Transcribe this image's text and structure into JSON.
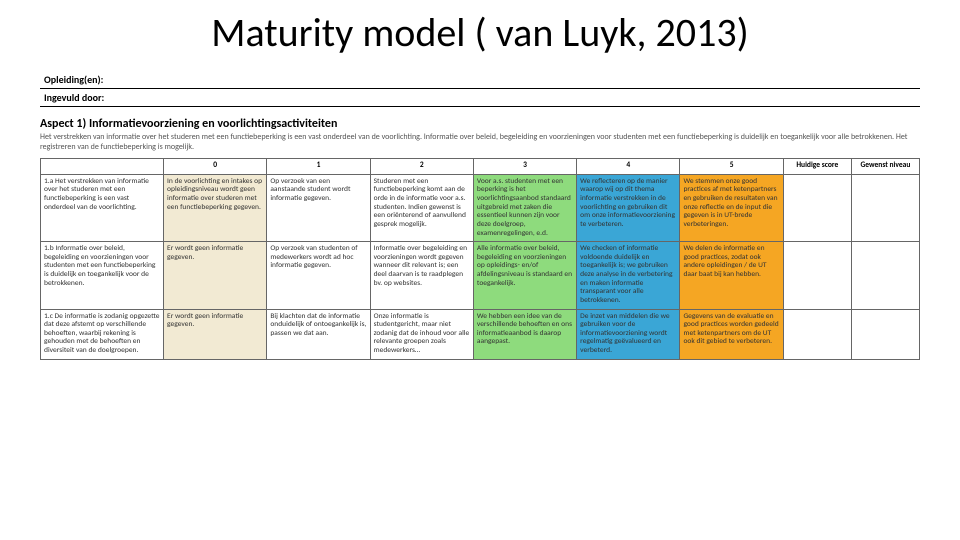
{
  "title": "Maturity model ( van Luyk, 2013)",
  "form": {
    "opleiding": "Opleiding(en):",
    "ingevuld": "Ingevuld door:"
  },
  "aspect": {
    "heading": "Aspect 1) Informatievoorziening en voorlichtingsactiviteiten",
    "description": "Het verstrekken van informatie over het studeren met een functiebeperking is een vast onderdeel van de voorlichting. Informatie over beleid, begeleiding en voorzieningen voor studenten met een functiebeperking is duidelijk en toegankelijk voor alle betrokkenen. Het registreren van de functiebeperking is mogelijk."
  },
  "columns": {
    "0": "0",
    "1": "1",
    "2": "2",
    "3": "3",
    "4": "4",
    "5": "5",
    "huidige": "Huidige score",
    "gewenst": "Gewenst niveau"
  },
  "colors": {
    "beige": "#f2ead3",
    "green": "#8edb7d",
    "blue": "#3aa6d6",
    "orange": "#f5a623",
    "border": "#666666",
    "text": "#333333"
  },
  "rows": [
    {
      "label": "1.a Het verstrekken van informatie over het studeren met een functiebeperking is een vast onderdeel van de voorlichting.",
      "cells": [
        {
          "text": "In de voorlichting en intakes op opleidingsniveau wordt geen informatie over studeren met een functiebeperking gegeven.",
          "cls": "c-beige"
        },
        {
          "text": "Op verzoek van een aanstaande student wordt informatie gegeven.",
          "cls": ""
        },
        {
          "text": "Studeren met een functiebeperking komt aan de orde in de informatie voor a.s. studenten. Indien gewenst is een oriënterend of aanvullend gesprek mogelijk.",
          "cls": ""
        },
        {
          "text": "Voor a.s. studenten met een beperking is het voorlichtingsaanbod standaard uitgebreid met zaken die essentieel kunnen zijn voor deze doelgroep, examenregelingen, e.d.",
          "cls": "c-green"
        },
        {
          "text": "We reflecteren op de manier waarop wij op dit thema informatie verstrekken in de voorlichting en gebruiken dit om onze informatievoorziening te verbeteren.",
          "cls": "c-blue"
        },
        {
          "text": "We stemmen onze good practices af met ketenpartners en gebruiken de resultaten van onze reflectie en de input die gegeven is in UT-brede verbeteringen.",
          "cls": "c-orange"
        }
      ]
    },
    {
      "label": "1.b Informatie over beleid, begeleiding en voorzieningen voor studenten met een functiebeperking is duidelijk en toegankelijk voor de betrokkenen.",
      "cells": [
        {
          "text": "Er wordt geen informatie gegeven.",
          "cls": "c-beige"
        },
        {
          "text": "Op verzoek van studenten of medewerkers wordt ad hoc informatie gegeven.",
          "cls": ""
        },
        {
          "text": "Informatie over begeleiding en voorzieningen wordt gegeven wanneer dit relevant is; een deel daarvan is te raadplegen bv. op websites.",
          "cls": ""
        },
        {
          "text": "Alle informatie over beleid, begeleiding en voorzieningen op opleidings- en/of afdelingsniveau is standaard en toegankelijk.",
          "cls": "c-green"
        },
        {
          "text": "We checken of informatie voldoende duidelijk en toegankelijk is; we gebruiken deze analyse in de verbetering en maken informatie transparant voor alle betrokkenen.",
          "cls": "c-blue"
        },
        {
          "text": "We delen de informatie en good practices, zodat ook andere opleidingen / de UT daar baat bij kan hebben.",
          "cls": "c-orange"
        }
      ]
    },
    {
      "label": "1.c De informatie is zodanig opgezette dat deze afstemt op verschillende behoeften, waarbij rekening is gehouden met de behoeften en diversiteit van de doelgroepen.",
      "cells": [
        {
          "text": "Er wordt geen informatie gegeven.",
          "cls": "c-beige"
        },
        {
          "text": "Bij klachten dat de informatie onduidelijk of ontoegankelijk is, passen we dat aan.",
          "cls": ""
        },
        {
          "text": "Onze informatie is studentgericht, maar niet zodanig dat de inhoud voor alle relevante groepen zoals medewerkers…",
          "cls": ""
        },
        {
          "text": "We hebben een idee van de verschillende behoeften en ons informatieaanbod is daarop aangepast.",
          "cls": "c-green"
        },
        {
          "text": "De inzet van middelen die we gebruiken voor de informatievoorziening wordt regelmatig geëvalueerd en verbeterd.",
          "cls": "c-blue"
        },
        {
          "text": "Gegevens van de evaluatie en good practices worden gedeeld met ketenpartners om de UT ook dit gebied te verbeteren.",
          "cls": "c-orange"
        }
      ]
    }
  ]
}
